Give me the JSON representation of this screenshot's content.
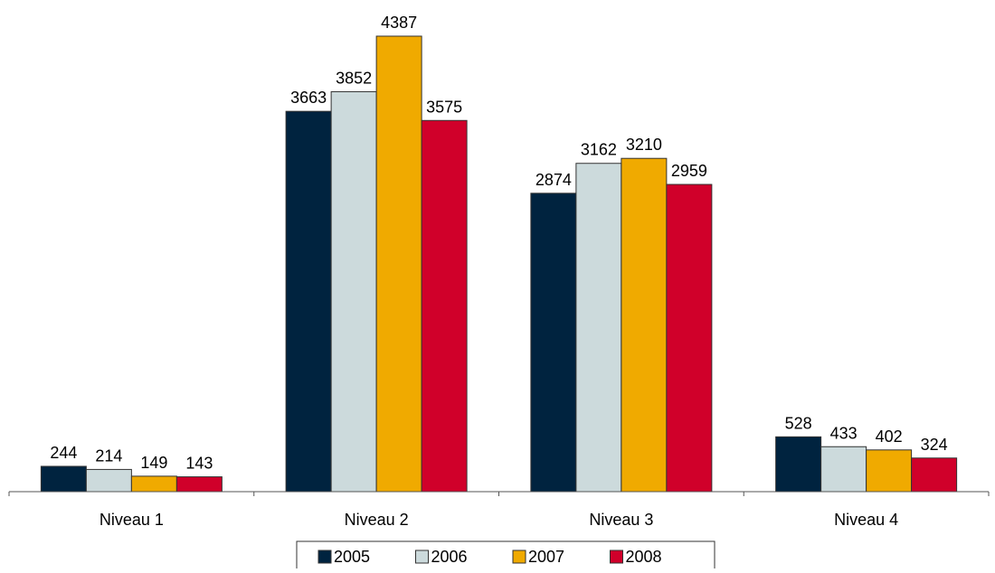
{
  "chart_data": {
    "type": "bar",
    "categories": [
      "Niveau 1",
      "Niveau 2",
      "Niveau 3",
      "Niveau 4"
    ],
    "series": [
      {
        "name": "2005",
        "color": "#00233f",
        "values": [
          244,
          3663,
          2874,
          528
        ]
      },
      {
        "name": "2006",
        "color": "#ccdadc",
        "values": [
          214,
          3852,
          3162,
          433
        ]
      },
      {
        "name": "2007",
        "color": "#f0aa00",
        "values": [
          149,
          4387,
          3210,
          402
        ]
      },
      {
        "name": "2008",
        "color": "#d0002a",
        "values": [
          143,
          3575,
          2959,
          324
        ]
      }
    ],
    "ylim": [
      0,
      4500
    ],
    "data_labels": true,
    "grid": false,
    "legend_position": "bottom"
  }
}
